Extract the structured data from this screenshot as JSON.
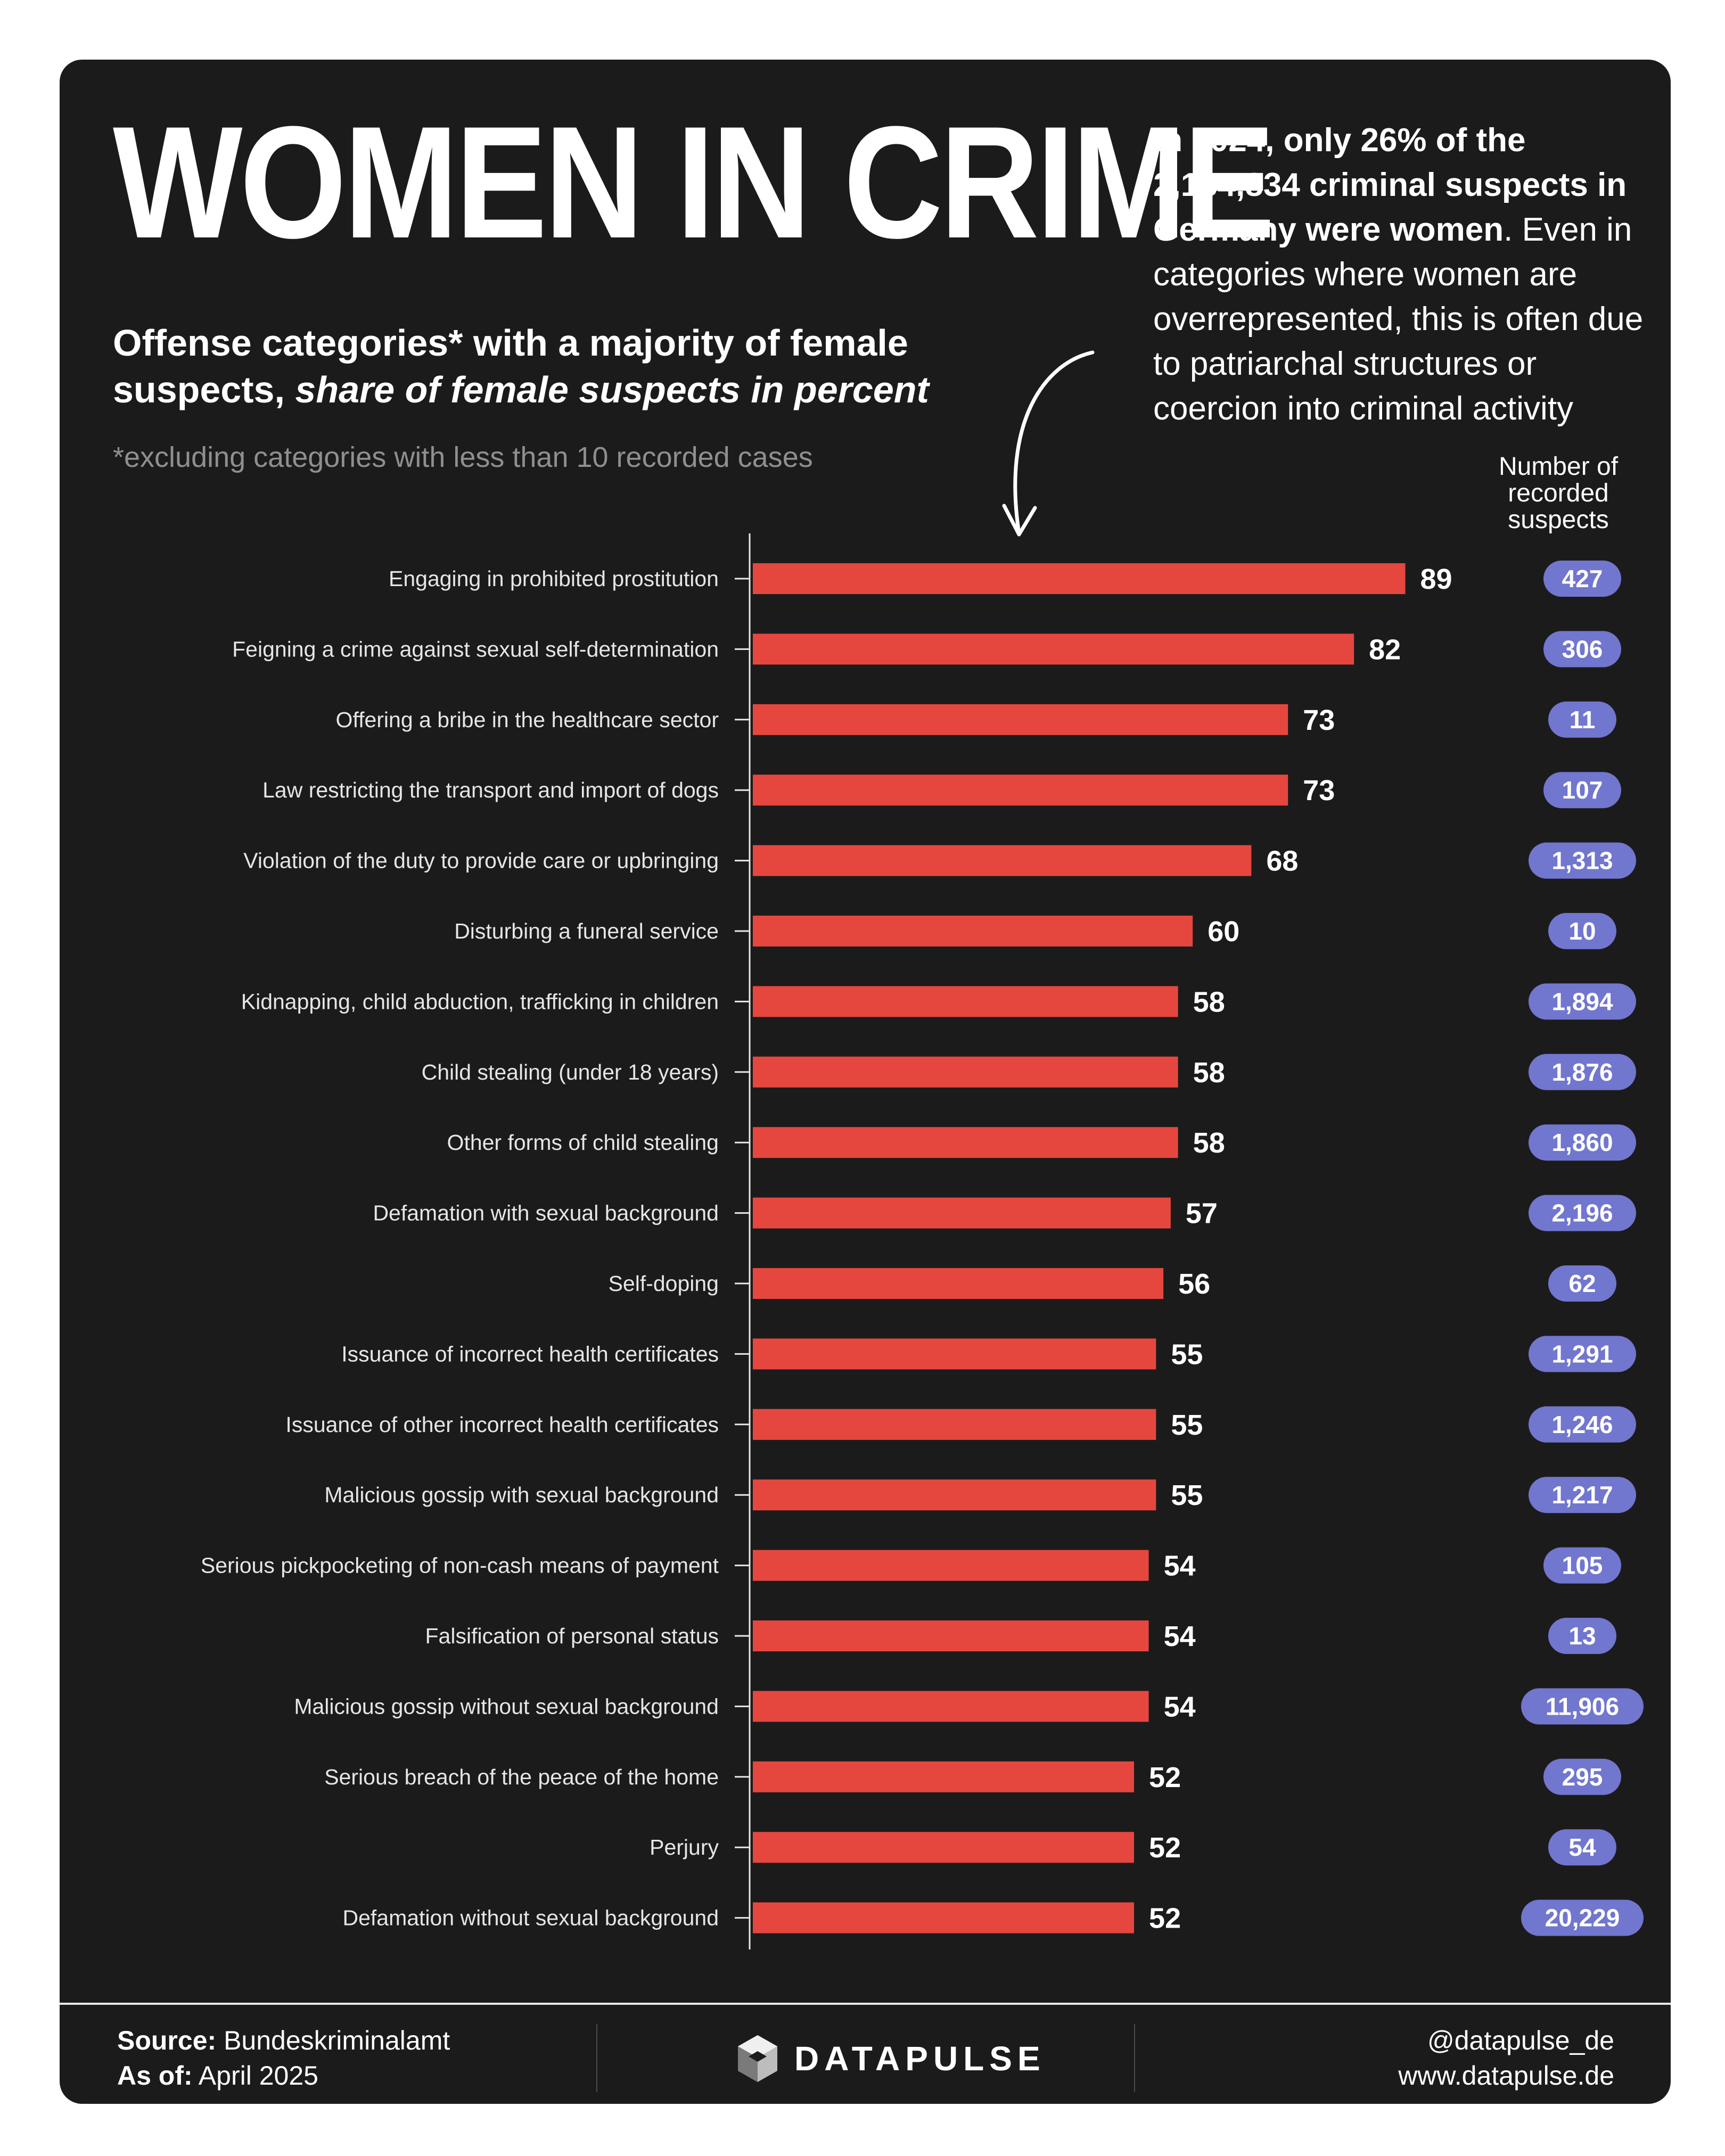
{
  "header": {
    "title": "WOMEN IN CRIME",
    "subtitle_bold": "Offense categories* with a majority of female suspects,",
    "subtitle_italic": "share of female suspects in percent",
    "footnote": "*excluding categories with less than 10 recorded cases"
  },
  "intro": {
    "bold": "In 2024, only 26% of the 2,184,834 criminal suspects in Germany were women",
    "rest": ". Even in categories where women are overrepresented, this is often due to patriarchal structures or coercion into criminal activity"
  },
  "counts_header": [
    "Number of",
    "recorded",
    "suspects"
  ],
  "colors": {
    "background": "#1c1b1b",
    "bar": "#e5473f",
    "pill": "#7176ce",
    "text": "#ffffff"
  },
  "chart_data": {
    "type": "bar",
    "orientation": "horizontal",
    "categories": [
      "Engaging in prohibited prostitution",
      "Feigning a crime against sexual self-determination",
      "Offering a bribe in the healthcare sector",
      "Law restricting the transport and import of dogs",
      "Violation of the duty to provide care or upbringing",
      "Disturbing a funeral service",
      "Kidnapping, child abduction, trafficking in children",
      "Child stealing (under 18 years)",
      "Other forms of child stealing",
      "Defamation with sexual background",
      "Self-doping",
      "Issuance of incorrect health certificates",
      "Issuance of other incorrect health certificates",
      "Malicious gossip with sexual background",
      "Serious pickpocketing of non-cash means of payment",
      "Falsification of personal status",
      "Malicious gossip without sexual background",
      "Serious breach of the peace of the home",
      "Perjury",
      "Defamation without sexual background"
    ],
    "values": [
      89,
      82,
      73,
      73,
      68,
      60,
      58,
      58,
      58,
      57,
      56,
      55,
      55,
      55,
      54,
      54,
      54,
      52,
      52,
      52
    ],
    "recorded_suspects": [
      "427",
      "306",
      "11",
      "107",
      "1,313",
      "10",
      "1,894",
      "1,876",
      "1,860",
      "2,196",
      "62",
      "1,291",
      "1,246",
      "1,217",
      "105",
      "13",
      "11,906",
      "295",
      "54",
      "20,229"
    ],
    "xlim": [
      0,
      100
    ],
    "grid": false,
    "legend": "none",
    "title": "",
    "xlabel": "",
    "ylabel": ""
  },
  "footer": {
    "source_label": "Source:",
    "source_value": "Bundeskriminalamt",
    "asof_label": "As of:",
    "asof_value": "April 2025",
    "brand": "DATAPULSE",
    "handle": "@datapulse_de",
    "website": "www.datapulse.de"
  }
}
